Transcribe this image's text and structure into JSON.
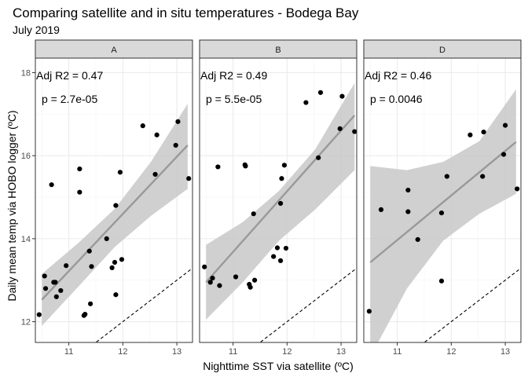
{
  "chart_data": {
    "type": "scatter",
    "title": "Comparing satellite and in situ temperatures - Bodega Bay",
    "subtitle": "July 2019",
    "xlabel": "Nighttime SST via satellite (ºC)",
    "ylabel": "Daily mean temp via HOBO logger (ºC)",
    "xlim": [
      10.38,
      13.29
    ],
    "ylim": [
      11.5,
      18.35
    ],
    "x_ticks": [
      "11",
      "12",
      "13"
    ],
    "y_ticks": [
      "12",
      "14",
      "16",
      "18"
    ],
    "grid": true,
    "colors": {
      "panel_background": "#ffffff",
      "grid_major": "#ebebeb",
      "grid_minor": "#f4f4f4",
      "strip_fill": "#d9d9d9",
      "points": "#000000",
      "fit_line": "#999999",
      "confidence_band": "#c8c8c8"
    },
    "reference_line": {
      "label": "1:1 line",
      "style": "dashed",
      "slope": 1,
      "intercept": 0
    },
    "panels": [
      {
        "label": "A",
        "annotation_r2": "Adj R2 = 0.47",
        "annotation_p": "p = 2.7e-05",
        "fit": {
          "x": [
            10.5,
            13.2
          ],
          "y": [
            12.53,
            16.25
          ]
        },
        "band_upper": [
          13.15,
          13.9,
          14.72,
          15.85,
          17.25
        ],
        "band_lower": [
          11.9,
          12.85,
          13.8,
          14.55,
          15.2
        ],
        "band_x": [
          10.5,
          11.18,
          11.85,
          12.52,
          13.2
        ],
        "points": [
          [
            10.45,
            12.17
          ],
          [
            10.55,
            13.1
          ],
          [
            10.57,
            12.8
          ],
          [
            10.68,
            15.3
          ],
          [
            10.72,
            12.95
          ],
          [
            10.75,
            12.95
          ],
          [
            10.77,
            12.6
          ],
          [
            10.85,
            12.75
          ],
          [
            10.95,
            13.35
          ],
          [
            11.2,
            15.68
          ],
          [
            11.2,
            15.12
          ],
          [
            11.28,
            12.15
          ],
          [
            11.3,
            12.18
          ],
          [
            11.38,
            13.7
          ],
          [
            11.4,
            12.43
          ],
          [
            11.42,
            13.33
          ],
          [
            11.7,
            14.0
          ],
          [
            11.8,
            13.3
          ],
          [
            11.85,
            13.43
          ],
          [
            11.87,
            12.65
          ],
          [
            11.87,
            14.8
          ],
          [
            11.95,
            15.6
          ],
          [
            11.98,
            13.5
          ],
          [
            12.37,
            16.72
          ],
          [
            12.6,
            15.55
          ],
          [
            12.63,
            16.5
          ],
          [
            12.98,
            16.25
          ],
          [
            13.02,
            16.82
          ],
          [
            13.22,
            15.45
          ]
        ]
      },
      {
        "label": "B",
        "annotation_r2": "Adj R2 = 0.49",
        "annotation_p": "p = 5.5e-05",
        "fit": {
          "x": [
            10.5,
            13.25
          ],
          "y": [
            12.95,
            16.97
          ]
        },
        "band_upper": [
          13.85,
          14.4,
          15.15,
          16.15,
          17.75
        ],
        "band_lower": [
          12.05,
          12.95,
          13.95,
          14.7,
          15.65
        ],
        "band_x": [
          10.5,
          11.18,
          11.85,
          12.52,
          13.25
        ],
        "points": [
          [
            10.47,
            13.32
          ],
          [
            10.58,
            12.95
          ],
          [
            10.62,
            13.05
          ],
          [
            10.72,
            15.73
          ],
          [
            10.75,
            12.87
          ],
          [
            11.05,
            13.08
          ],
          [
            11.22,
            15.78
          ],
          [
            11.23,
            15.75
          ],
          [
            11.3,
            12.9
          ],
          [
            11.32,
            12.83
          ],
          [
            11.38,
            14.6
          ],
          [
            11.4,
            13.0
          ],
          [
            11.75,
            13.57
          ],
          [
            11.82,
            13.78
          ],
          [
            11.88,
            14.85
          ],
          [
            11.88,
            13.47
          ],
          [
            11.9,
            15.45
          ],
          [
            11.95,
            15.77
          ],
          [
            11.98,
            13.77
          ],
          [
            12.35,
            17.28
          ],
          [
            12.58,
            15.95
          ],
          [
            12.62,
            17.52
          ],
          [
            12.98,
            16.65
          ],
          [
            13.02,
            17.43
          ],
          [
            13.25,
            16.58
          ]
        ]
      },
      {
        "label": "D",
        "annotation_r2": "Adj R2 = 0.46",
        "annotation_p": "p = 0.0046",
        "fit": {
          "x": [
            10.5,
            13.2
          ],
          "y": [
            13.43,
            16.33
          ]
        },
        "band_upper": [
          15.75,
          15.65,
          15.85,
          16.35,
          17.6
        ],
        "band_lower": [
          11.15,
          12.8,
          13.95,
          14.6,
          15.08
        ],
        "band_x": [
          10.5,
          11.18,
          11.85,
          12.52,
          13.2
        ],
        "points": [
          [
            10.48,
            12.25
          ],
          [
            10.7,
            14.7
          ],
          [
            11.2,
            15.17
          ],
          [
            11.2,
            14.65
          ],
          [
            11.38,
            13.98
          ],
          [
            11.82,
            14.62
          ],
          [
            11.82,
            12.98
          ],
          [
            11.92,
            15.5
          ],
          [
            12.35,
            16.5
          ],
          [
            12.58,
            15.5
          ],
          [
            12.6,
            16.57
          ],
          [
            12.97,
            16.03
          ],
          [
            13.0,
            16.73
          ],
          [
            13.22,
            15.2
          ]
        ]
      }
    ]
  }
}
